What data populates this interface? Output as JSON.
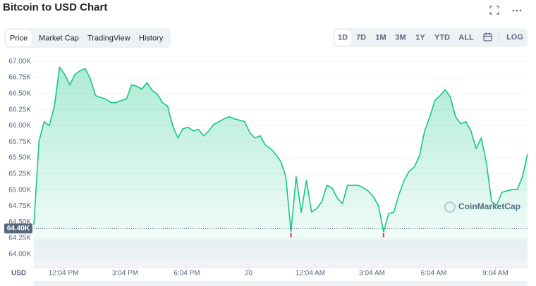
{
  "header": {
    "title": "Bitcoin to USD Chart",
    "tabs": [
      "Price",
      "Market Cap",
      "TradingView",
      "History"
    ],
    "ranges": [
      "1D",
      "7D",
      "1M",
      "3M",
      "1Y",
      "YTD",
      "ALL"
    ],
    "log": "LOG"
  },
  "chart_data": {
    "type": "line",
    "x": [
      0,
      0.25,
      0.5,
      0.75,
      1,
      1.25,
      1.5,
      1.75,
      2,
      2.25,
      2.5,
      2.75,
      3,
      3.25,
      3.5,
      3.75,
      4,
      4.25,
      4.5,
      4.75,
      5,
      5.25,
      5.5,
      5.75,
      6,
      6.25,
      6.5,
      6.75,
      7,
      7.25,
      7.5,
      7.75,
      8,
      8.25,
      8.5,
      8.75,
      9,
      9.25,
      9.5,
      9.75,
      10,
      10.25,
      10.5,
      10.75,
      11,
      11.25,
      11.5,
      11.75,
      12,
      12.25,
      12.5,
      12.75,
      13,
      13.25,
      13.5,
      13.75,
      14,
      14.25,
      14.5,
      14.75,
      15,
      15.25,
      15.5,
      15.75,
      16,
      16.25,
      16.5,
      16.75,
      17,
      17.25,
      17.5,
      17.75,
      18,
      18.25,
      18.5,
      18.75,
      19,
      19.25,
      19.5,
      19.75,
      20,
      20.25,
      20.5,
      20.75,
      21,
      21.25,
      21.5,
      21.75,
      22,
      22.25,
      22.5,
      22.75,
      23,
      23.25,
      23.5,
      23.75,
      24
    ],
    "series": [
      {
        "color": "#16c784",
        "values": [
          64460,
          65756,
          66064,
          66000,
          66306,
          66912,
          66800,
          66637,
          66800,
          66857,
          66890,
          66725,
          66470,
          66440,
          66415,
          66360,
          66360,
          66395,
          66415,
          66637,
          66615,
          66570,
          66670,
          66550,
          66495,
          66360,
          66306,
          66000,
          65810,
          65955,
          65976,
          65920,
          65943,
          65844,
          65920,
          66020,
          66064,
          66108,
          66141,
          66108,
          66086,
          66064,
          65888,
          65810,
          65844,
          65700,
          65646,
          65558,
          65448,
          65206,
          64350,
          65206,
          64655,
          65150,
          64655,
          64710,
          64820,
          65073,
          65030,
          64875,
          64787,
          65073,
          65073,
          65073,
          65040,
          64985,
          64897,
          64760,
          64350,
          64633,
          64655,
          64930,
          65150,
          65294,
          65360,
          65536,
          65920,
          66141,
          66395,
          66470,
          66560,
          66440,
          66141,
          66031,
          66064,
          65920,
          65646,
          65810,
          65426,
          64820,
          64765,
          64963,
          64985,
          65007,
          65007,
          65206,
          65558
        ]
      }
    ],
    "xlim": [
      0,
      24
    ],
    "xticks": [
      {
        "value": 1.44,
        "label": "12:04 PM"
      },
      {
        "value": 4.44,
        "label": "3:04 PM"
      },
      {
        "value": 7.44,
        "label": "6:04 PM"
      },
      {
        "value": 10.44,
        "label": "20"
      },
      {
        "value": 13.44,
        "label": "12:04 AM"
      },
      {
        "value": 16.44,
        "label": "3:04 AM"
      },
      {
        "value": 19.44,
        "label": "6:04 AM"
      },
      {
        "value": 22.44,
        "label": "9:04 AM"
      }
    ],
    "ylim": [
      63900,
      67080
    ],
    "yticks": [
      {
        "value": 64000,
        "label": "64.00K"
      },
      {
        "value": 64250,
        "label": "64.25K"
      },
      {
        "value": 64500,
        "label": "64.50K"
      },
      {
        "value": 64750,
        "label": "64.75K"
      },
      {
        "value": 65000,
        "label": "65.00K"
      },
      {
        "value": 65250,
        "label": "65.25K"
      },
      {
        "value": 65500,
        "label": "65.50K"
      },
      {
        "value": 65750,
        "label": "65.75K"
      },
      {
        "value": 66000,
        "label": "66.00K"
      },
      {
        "value": 66250,
        "label": "66.25K"
      },
      {
        "value": 66500,
        "label": "66.50K"
      },
      {
        "value": 66750,
        "label": "66.75K"
      },
      {
        "value": 67000,
        "label": "67.00K"
      }
    ],
    "grid": true,
    "currency_label": "USD",
    "watermark": "CoinMarketCap",
    "current_price": {
      "value": 64400,
      "label": "64.40K"
    }
  }
}
